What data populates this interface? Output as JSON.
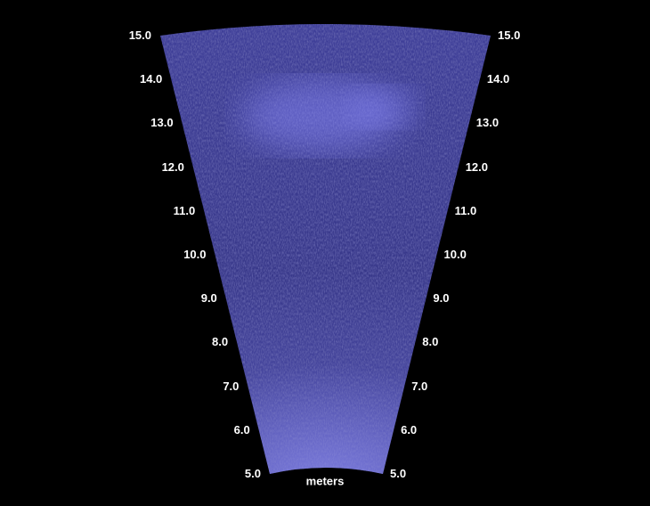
{
  "sonar": {
    "unit_label": "meters",
    "range_min": 5.0,
    "range_max": 15.0,
    "ticks": [
      "5.0",
      "6.0",
      "7.0",
      "8.0",
      "9.0",
      "10.0",
      "11.0",
      "12.0",
      "13.0",
      "14.0",
      "15.0"
    ],
    "colors": {
      "background": "#000000",
      "echo_base": "#3a3a8c",
      "echo_bright": "#8a8aff",
      "label": "#ffffff"
    }
  }
}
